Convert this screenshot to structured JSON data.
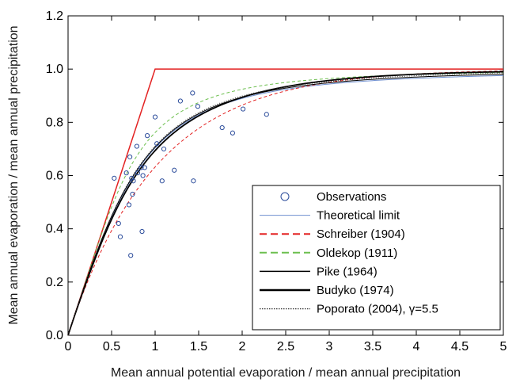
{
  "chart_data": {
    "type": "line",
    "title": "",
    "xlabel": "Mean annual potential evaporation / mean annual precipitation",
    "ylabel": "Mean annual evaporation / mean annual precipitation",
    "xlim": [
      0,
      5
    ],
    "ylim": [
      0,
      1.2
    ],
    "xticks": [
      "0",
      "0.5",
      "1",
      "1.5",
      "2",
      "2.5",
      "3",
      "3.5",
      "4",
      "4.5",
      "5"
    ],
    "yticks": [
      "0.0",
      "0.2",
      "0.4",
      "0.6",
      "0.8",
      "1.0",
      "1.2"
    ],
    "grid": false,
    "legend_position": "bottom-right",
    "legend": [
      {
        "label": "Observations",
        "style": "circle",
        "color": "#2b4c9b"
      },
      {
        "label": "Theoretical limit",
        "style": "solid-thin",
        "color": "#6f8fd0"
      },
      {
        "label": "Schreiber (1904)",
        "style": "dashed",
        "color": "#e32222"
      },
      {
        "label": "Oldekop (1911)",
        "style": "dashed",
        "color": "#6cbf4e"
      },
      {
        "label": "Pike (1964)",
        "style": "solid",
        "color": "#000000"
      },
      {
        "label": "Budyko (1974)",
        "style": "solid-thick",
        "color": "#000000"
      },
      {
        "label": "Poporato (2004), γ=5.5",
        "style": "dotted",
        "color": "#333333"
      }
    ],
    "limit_line": {
      "x": [
        0,
        1,
        5
      ],
      "y": [
        0,
        1,
        1
      ],
      "color": "#e32222"
    },
    "observations": {
      "x": [
        0.53,
        0.58,
        0.6,
        0.67,
        0.7,
        0.71,
        0.72,
        0.73,
        0.74,
        0.75,
        0.79,
        0.8,
        0.84,
        0.85,
        0.86,
        0.88,
        0.91,
        1.0,
        1.02,
        1.08,
        1.1,
        1.22,
        1.29,
        1.43,
        1.44,
        1.49,
        1.77,
        1.89,
        2.01,
        2.28
      ],
      "y": [
        0.59,
        0.42,
        0.37,
        0.61,
        0.49,
        0.67,
        0.3,
        0.59,
        0.53,
        0.58,
        0.71,
        0.61,
        0.63,
        0.39,
        0.6,
        0.63,
        0.75,
        0.82,
        0.72,
        0.58,
        0.7,
        0.62,
        0.88,
        0.91,
        0.58,
        0.86,
        0.78,
        0.76,
        0.85,
        0.83
      ]
    }
  }
}
